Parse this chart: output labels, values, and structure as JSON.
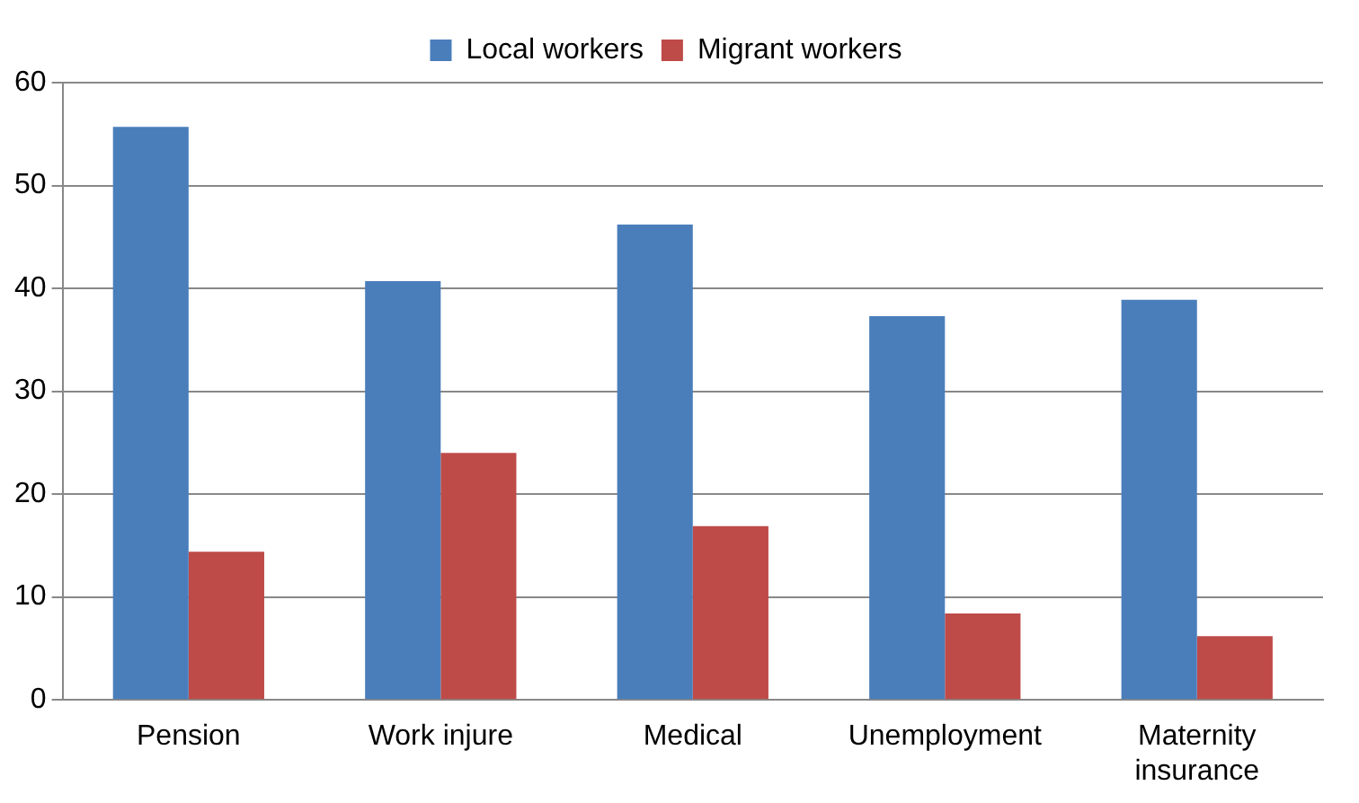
{
  "chart_data": {
    "type": "bar",
    "categories": [
      "Pension",
      "Work injure",
      "Medical",
      "Unemployment",
      "Maternity insurance"
    ],
    "series": [
      {
        "name": "Local workers",
        "color": "#4a7ebb",
        "values": [
          55.7,
          40.7,
          46.2,
          37.3,
          38.9
        ]
      },
      {
        "name": "Migrant workers",
        "color": "#be4b48",
        "values": [
          14.4,
          24.0,
          16.9,
          8.4,
          6.2
        ]
      }
    ],
    "ylim": [
      0,
      60
    ],
    "yticks": [
      0,
      10,
      20,
      30,
      40,
      50,
      60
    ],
    "grid": "y",
    "legend": "top"
  }
}
